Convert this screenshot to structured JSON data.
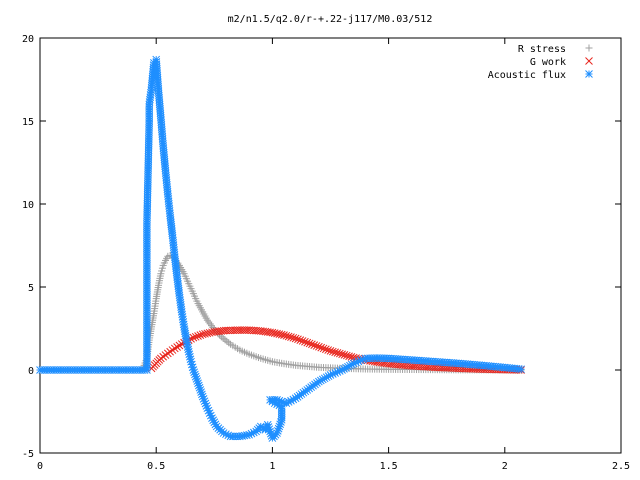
{
  "chart_data": {
    "type": "scatter",
    "title": "m2/n1.5/q2.0/r-+.22-j117/M0.03/512",
    "xlabel": "",
    "ylabel": "",
    "xlim": [
      0,
      2.5
    ],
    "ylim": [
      -5,
      20
    ],
    "x_ticks": [
      "0",
      "0.5",
      "1",
      "1.5",
      "2",
      "2.5"
    ],
    "y_ticks": [
      "-5",
      "0",
      "5",
      "10",
      "15",
      "20"
    ],
    "grid": false,
    "legend_position": "top-right",
    "series": [
      {
        "name": "R stress",
        "marker": "plus",
        "color": "#a0a0a0",
        "points": [
          [
            0.0,
            0.0
          ],
          [
            0.1,
            0.0
          ],
          [
            0.2,
            0.0
          ],
          [
            0.3,
            0.0
          ],
          [
            0.4,
            0.0
          ],
          [
            0.44,
            0.0
          ],
          [
            0.46,
            0.7
          ],
          [
            0.47,
            1.8
          ],
          [
            0.48,
            2.6
          ],
          [
            0.49,
            3.4
          ],
          [
            0.5,
            4.3
          ],
          [
            0.51,
            5.1
          ],
          [
            0.52,
            5.8
          ],
          [
            0.53,
            6.3
          ],
          [
            0.54,
            6.6
          ],
          [
            0.55,
            6.85
          ],
          [
            0.56,
            6.9
          ],
          [
            0.58,
            6.7
          ],
          [
            0.6,
            6.3
          ],
          [
            0.62,
            5.8
          ],
          [
            0.64,
            5.2
          ],
          [
            0.66,
            4.6
          ],
          [
            0.68,
            4.0
          ],
          [
            0.7,
            3.5
          ],
          [
            0.72,
            3.0
          ],
          [
            0.75,
            2.45
          ],
          [
            0.78,
            2.0
          ],
          [
            0.82,
            1.55
          ],
          [
            0.86,
            1.2
          ],
          [
            0.9,
            0.95
          ],
          [
            0.95,
            0.7
          ],
          [
            1.0,
            0.5
          ],
          [
            1.05,
            0.38
          ],
          [
            1.1,
            0.28
          ],
          [
            1.2,
            0.16
          ],
          [
            1.3,
            0.1
          ],
          [
            1.4,
            0.06
          ],
          [
            1.5,
            0.04
          ],
          [
            1.6,
            0.03
          ],
          [
            1.7,
            0.02
          ],
          [
            1.8,
            0.01
          ],
          [
            1.9,
            0.01
          ],
          [
            2.0,
            0.0
          ],
          [
            2.07,
            0.0
          ]
        ]
      },
      {
        "name": "G work",
        "marker": "cross",
        "color": "#e8241c",
        "points": [
          [
            0.48,
            0.1
          ],
          [
            0.5,
            0.4
          ],
          [
            0.52,
            0.7
          ],
          [
            0.55,
            1.0
          ],
          [
            0.58,
            1.3
          ],
          [
            0.62,
            1.65
          ],
          [
            0.66,
            1.95
          ],
          [
            0.7,
            2.15
          ],
          [
            0.75,
            2.3
          ],
          [
            0.8,
            2.38
          ],
          [
            0.85,
            2.4
          ],
          [
            0.9,
            2.4
          ],
          [
            0.95,
            2.35
          ],
          [
            1.0,
            2.25
          ],
          [
            1.05,
            2.1
          ],
          [
            1.1,
            1.9
          ],
          [
            1.15,
            1.65
          ],
          [
            1.2,
            1.4
          ],
          [
            1.25,
            1.15
          ],
          [
            1.3,
            0.95
          ],
          [
            1.35,
            0.75
          ],
          [
            1.4,
            0.6
          ],
          [
            1.45,
            0.48
          ],
          [
            1.5,
            0.38
          ],
          [
            1.6,
            0.25
          ],
          [
            1.7,
            0.16
          ],
          [
            1.8,
            0.1
          ],
          [
            1.9,
            0.05
          ],
          [
            2.0,
            0.02
          ],
          [
            2.07,
            0.0
          ]
        ]
      },
      {
        "name": "Acoustic flux",
        "marker": "star",
        "color": "#1f8fff",
        "points": [
          [
            0.0,
            0.0
          ],
          [
            0.1,
            0.0
          ],
          [
            0.2,
            0.0
          ],
          [
            0.3,
            0.0
          ],
          [
            0.4,
            0.0
          ],
          [
            0.46,
            0.0
          ],
          [
            0.46,
            8.8
          ],
          [
            0.47,
            15.0
          ],
          [
            0.47,
            16.0
          ],
          [
            0.48,
            17.0
          ],
          [
            0.49,
            18.5
          ],
          [
            0.5,
            18.7
          ],
          [
            0.51,
            16.8
          ],
          [
            0.52,
            15.2
          ],
          [
            0.53,
            13.5
          ],
          [
            0.54,
            12.0
          ],
          [
            0.55,
            10.6
          ],
          [
            0.56,
            9.3
          ],
          [
            0.57,
            8.1
          ],
          [
            0.58,
            6.8
          ],
          [
            0.59,
            5.6
          ],
          [
            0.6,
            4.5
          ],
          [
            0.61,
            3.5
          ],
          [
            0.62,
            2.6
          ],
          [
            0.63,
            1.8
          ],
          [
            0.64,
            1.1
          ],
          [
            0.65,
            0.5
          ],
          [
            0.66,
            0.0
          ],
          [
            0.68,
            -0.8
          ],
          [
            0.7,
            -1.6
          ],
          [
            0.72,
            -2.3
          ],
          [
            0.74,
            -2.9
          ],
          [
            0.76,
            -3.4
          ],
          [
            0.79,
            -3.8
          ],
          [
            0.82,
            -4.0
          ],
          [
            0.86,
            -4.0
          ],
          [
            0.9,
            -3.9
          ],
          [
            0.93,
            -3.7
          ],
          [
            0.95,
            -3.4
          ],
          [
            0.97,
            -3.6
          ],
          [
            0.98,
            -3.3
          ],
          [
            1.0,
            -4.1
          ],
          [
            1.02,
            -3.8
          ],
          [
            1.04,
            -3.0
          ],
          [
            1.04,
            -2.2
          ],
          [
            1.01,
            -2.0
          ],
          [
            0.99,
            -1.8
          ],
          [
            1.02,
            -1.8
          ],
          [
            1.06,
            -2.0
          ],
          [
            1.1,
            -1.7
          ],
          [
            1.15,
            -1.2
          ],
          [
            1.2,
            -0.7
          ],
          [
            1.25,
            -0.3
          ],
          [
            1.3,
            0.0
          ],
          [
            1.35,
            0.4
          ],
          [
            1.4,
            0.7
          ],
          [
            1.45,
            0.72
          ],
          [
            1.5,
            0.7
          ],
          [
            1.6,
            0.6
          ],
          [
            1.7,
            0.5
          ],
          [
            1.8,
            0.4
          ],
          [
            1.9,
            0.28
          ],
          [
            2.0,
            0.15
          ],
          [
            2.07,
            0.05
          ]
        ]
      }
    ]
  }
}
